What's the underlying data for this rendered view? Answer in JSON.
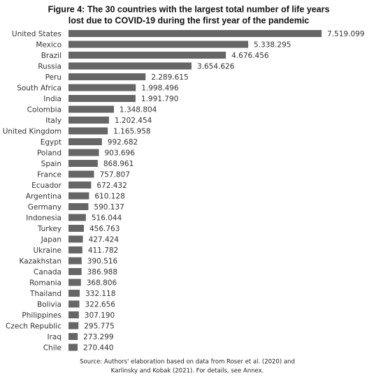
{
  "chart_data": {
    "type": "bar",
    "orientation": "horizontal",
    "title": [
      "Figure 4: The 30 countries with the largest total number of life years",
      "lost due to COVID-19 during the first year of the pandemic"
    ],
    "categories": [
      "United States",
      "Mexico",
      "Brazil",
      "Russia",
      "Peru",
      "South Africa",
      "India",
      "Colombia",
      "Italy",
      "United Kingdom",
      "Egypt",
      "Poland",
      "Spain",
      "France",
      "Ecuador",
      "Argentina",
      "Germany",
      "Indonesia",
      "Turkey",
      "Japan",
      "Ukraine",
      "Kazakhstan",
      "Canada",
      "Romania",
      "Thailand",
      "Bolivia",
      "Philippines",
      "Czech Republic",
      "Iraq",
      "Chile"
    ],
    "values": [
      7519099,
      5338295,
      4676456,
      3654626,
      2289615,
      1998496,
      1991790,
      1348804,
      1202454,
      1165958,
      992682,
      903696,
      868961,
      757807,
      672432,
      610128,
      590137,
      516044,
      456763,
      427424,
      411782,
      390516,
      386988,
      368806,
      332118,
      322656,
      307190,
      295775,
      273299,
      270440
    ],
    "value_labels": [
      "7.519.099",
      "5.338.295",
      "4.676.456",
      "3.654.626",
      "2.289.615",
      "1.998.496",
      "1.991.790",
      "1.348.804",
      "1.202.454",
      "1.165.958",
      "992.682",
      "903.696",
      "868.961",
      "757.807",
      "672.432",
      "610.128",
      "590.137",
      "516.044",
      "456.763",
      "427.424",
      "411.782",
      "390.516",
      "386.988",
      "368.806",
      "332.118",
      "322.656",
      "307.190",
      "295.775",
      "273.299",
      "270.440"
    ],
    "color": "#666666",
    "note": [
      "Source: Authors' elaboration based on data from Roser et al. (2020) and",
      "Karlinsky and Kobak (2021). For details, see Annex."
    ]
  }
}
